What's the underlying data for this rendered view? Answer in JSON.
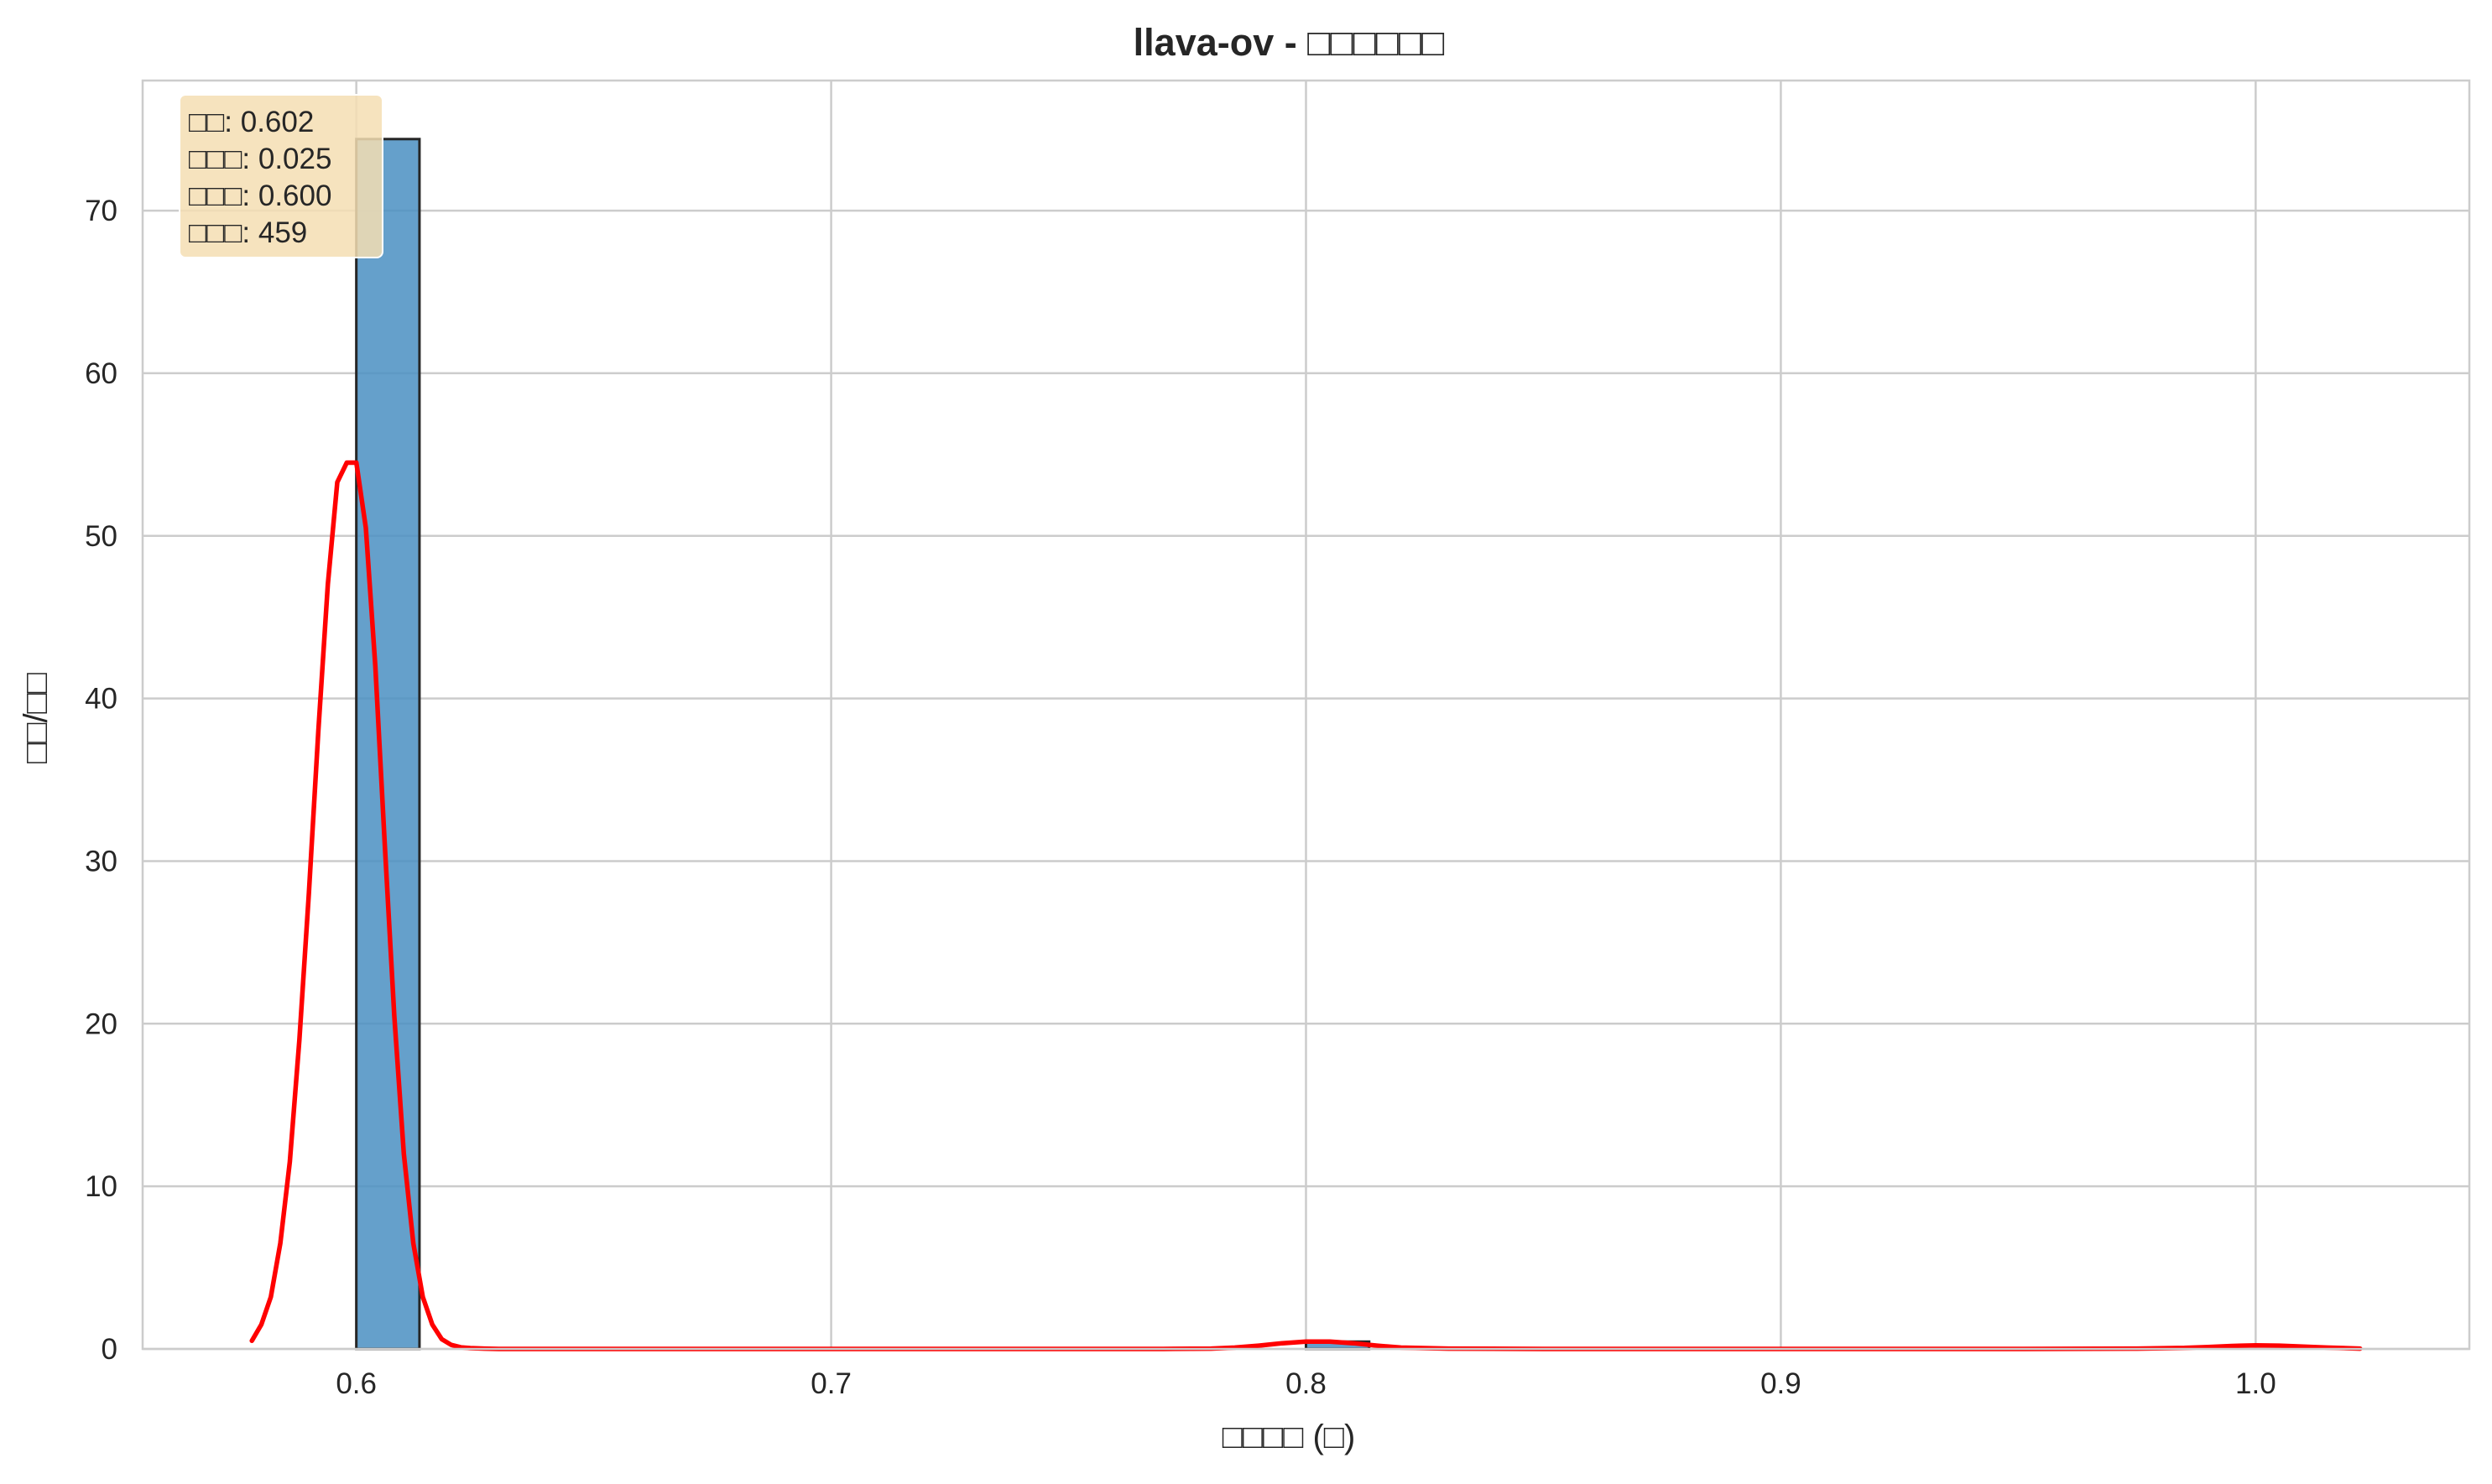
{
  "chart_data": {
    "type": "histogram",
    "title": "llava-ov - □□□□□□",
    "xlabel": "□□□□ (□)",
    "ylabel": "□□/□□",
    "xlim": [
      0.555,
      1.045
    ],
    "ylim": [
      0,
      78
    ],
    "xticks": [
      0.6,
      0.7,
      0.8,
      0.9,
      1.0
    ],
    "xtick_labels": [
      "0.6",
      "0.7",
      "0.8",
      "0.9",
      "1.0"
    ],
    "yticks": [
      0,
      10,
      20,
      30,
      40,
      50,
      60,
      70
    ],
    "ytick_labels": [
      "0",
      "10",
      "20",
      "30",
      "40",
      "50",
      "60",
      "70"
    ],
    "grid": true,
    "bins": [
      {
        "x0": 0.6,
        "x1": 0.6133,
        "density": 74.4
      },
      {
        "x0": 0.8,
        "x1": 0.8133,
        "density": 0.45
      }
    ],
    "kde": {
      "color": "#ff0000",
      "x": [
        0.578,
        0.58,
        0.582,
        0.584,
        0.586,
        0.588,
        0.59,
        0.592,
        0.594,
        0.596,
        0.598,
        0.6,
        0.602,
        0.604,
        0.606,
        0.608,
        0.61,
        0.612,
        0.614,
        0.616,
        0.618,
        0.62,
        0.622,
        0.624,
        0.627,
        0.63,
        0.65,
        0.7,
        0.75,
        0.77,
        0.78,
        0.785,
        0.79,
        0.795,
        0.8,
        0.805,
        0.81,
        0.815,
        0.82,
        0.83,
        0.85,
        0.9,
        0.95,
        0.975,
        0.985,
        0.99,
        0.995,
        1.0,
        1.005,
        1.01,
        1.015,
        1.022
      ],
      "y": [
        0.5,
        1.5,
        3.2,
        6.5,
        11.5,
        19,
        28,
        38,
        47,
        53.3,
        54.5,
        54.5,
        50.5,
        42,
        31,
        20.5,
        12,
        6.5,
        3.2,
        1.5,
        0.6,
        0.25,
        0.1,
        0.05,
        0.02,
        0.0,
        0.0,
        0.0,
        0.0,
        0.0,
        0.02,
        0.08,
        0.2,
        0.35,
        0.45,
        0.45,
        0.35,
        0.2,
        0.08,
        0.02,
        0.0,
        0.0,
        0.0,
        0.02,
        0.06,
        0.12,
        0.18,
        0.22,
        0.2,
        0.14,
        0.08,
        0.02
      ]
    },
    "stats_box": {
      "lines": [
        "□□: 0.602",
        "□□□: 0.025",
        "□□□: 0.600",
        "□□□: 459"
      ],
      "background": "#f5deb3"
    },
    "bar_color": "#4a8fc2",
    "bar_edge_color": "#262626"
  }
}
